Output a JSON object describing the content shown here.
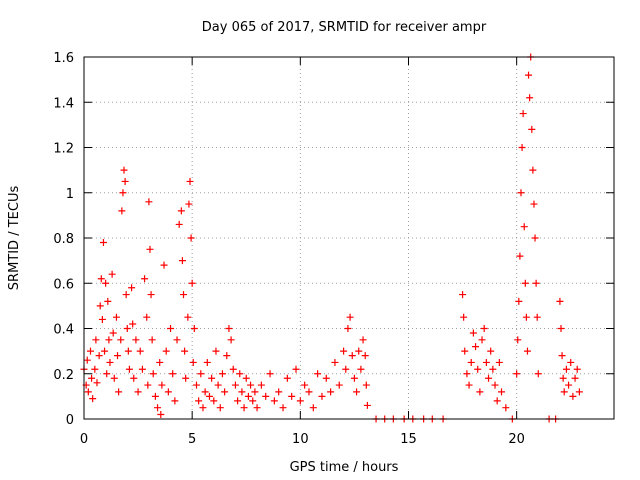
{
  "chart_data": {
    "type": "scatter",
    "title": "Day 065 of 2017, SRMTID for receiver ampr",
    "xlabel": "GPS time / hours",
    "ylabel": "SRMTID / TECUs",
    "xlim": [
      0,
      24.5
    ],
    "ylim": [
      0,
      1.6
    ],
    "xticks": [
      0,
      5,
      10,
      15,
      20
    ],
    "xtick_labels": [
      "0",
      "5",
      "10",
      "15",
      "20"
    ],
    "yticks": [
      0,
      0.2,
      0.4,
      0.6,
      0.8,
      1.0,
      1.2,
      1.4,
      1.6
    ],
    "ytick_labels": [
      "0",
      "0.2",
      "0.4",
      "0.6",
      "0.8",
      "1",
      "1.2",
      "1.4",
      "1.6"
    ],
    "grid": true,
    "marker": "+",
    "colors": {
      "series": "#ff0000",
      "axis": "#000000",
      "grid": "#a0a0a0"
    },
    "series": [
      {
        "name": "SRMTID",
        "points": [
          [
            0.0,
            0.22
          ],
          [
            0.1,
            0.15
          ],
          [
            0.15,
            0.26
          ],
          [
            0.2,
            0.12
          ],
          [
            0.3,
            0.3
          ],
          [
            0.35,
            0.18
          ],
          [
            0.4,
            0.09
          ],
          [
            0.5,
            0.22
          ],
          [
            0.55,
            0.35
          ],
          [
            0.6,
            0.16
          ],
          [
            0.7,
            0.28
          ],
          [
            0.75,
            0.5
          ],
          [
            0.8,
            0.62
          ],
          [
            0.85,
            0.44
          ],
          [
            0.9,
            0.78
          ],
          [
            0.95,
            0.3
          ],
          [
            1.0,
            0.6
          ],
          [
            1.05,
            0.2
          ],
          [
            1.1,
            0.52
          ],
          [
            1.15,
            0.35
          ],
          [
            1.2,
            0.25
          ],
          [
            1.3,
            0.64
          ],
          [
            1.35,
            0.38
          ],
          [
            1.4,
            0.18
          ],
          [
            1.5,
            0.45
          ],
          [
            1.55,
            0.28
          ],
          [
            1.6,
            0.12
          ],
          [
            1.7,
            0.35
          ],
          [
            1.75,
            0.92
          ],
          [
            1.8,
            1.0
          ],
          [
            1.85,
            1.1
          ],
          [
            1.9,
            1.05
          ],
          [
            1.95,
            0.55
          ],
          [
            2.0,
            0.4
          ],
          [
            2.05,
            0.3
          ],
          [
            2.1,
            0.22
          ],
          [
            2.2,
            0.58
          ],
          [
            2.25,
            0.42
          ],
          [
            2.3,
            0.18
          ],
          [
            2.4,
            0.35
          ],
          [
            2.5,
            0.12
          ],
          [
            2.6,
            0.3
          ],
          [
            2.7,
            0.22
          ],
          [
            2.8,
            0.62
          ],
          [
            2.9,
            0.45
          ],
          [
            2.95,
            0.15
          ],
          [
            3.0,
            0.96
          ],
          [
            3.05,
            0.75
          ],
          [
            3.1,
            0.55
          ],
          [
            3.15,
            0.35
          ],
          [
            3.2,
            0.2
          ],
          [
            3.3,
            0.1
          ],
          [
            3.4,
            0.05
          ],
          [
            3.5,
            0.25
          ],
          [
            3.55,
            0.02
          ],
          [
            3.6,
            0.15
          ],
          [
            3.7,
            0.68
          ],
          [
            3.8,
            0.3
          ],
          [
            3.9,
            0.12
          ],
          [
            4.0,
            0.4
          ],
          [
            4.1,
            0.2
          ],
          [
            4.2,
            0.08
          ],
          [
            4.3,
            0.35
          ],
          [
            4.4,
            0.86
          ],
          [
            4.5,
            0.92
          ],
          [
            4.55,
            0.7
          ],
          [
            4.6,
            0.55
          ],
          [
            4.65,
            0.3
          ],
          [
            4.7,
            0.18
          ],
          [
            4.8,
            0.45
          ],
          [
            4.85,
            0.95
          ],
          [
            4.9,
            1.05
          ],
          [
            4.95,
            0.8
          ],
          [
            5.0,
            0.6
          ],
          [
            5.05,
            0.25
          ],
          [
            5.1,
            0.4
          ],
          [
            5.2,
            0.15
          ],
          [
            5.3,
            0.08
          ],
          [
            5.4,
            0.2
          ],
          [
            5.5,
            0.05
          ],
          [
            5.6,
            0.12
          ],
          [
            5.7,
            0.25
          ],
          [
            5.8,
            0.1
          ],
          [
            5.9,
            0.18
          ],
          [
            6.0,
            0.08
          ],
          [
            6.1,
            0.3
          ],
          [
            6.2,
            0.15
          ],
          [
            6.3,
            0.05
          ],
          [
            6.4,
            0.2
          ],
          [
            6.5,
            0.12
          ],
          [
            6.6,
            0.28
          ],
          [
            6.7,
            0.4
          ],
          [
            6.8,
            0.35
          ],
          [
            6.9,
            0.22
          ],
          [
            7.0,
            0.15
          ],
          [
            7.1,
            0.08
          ],
          [
            7.2,
            0.2
          ],
          [
            7.3,
            0.12
          ],
          [
            7.4,
            0.05
          ],
          [
            7.5,
            0.18
          ],
          [
            7.6,
            0.1
          ],
          [
            7.7,
            0.15
          ],
          [
            7.8,
            0.08
          ],
          [
            7.9,
            0.12
          ],
          [
            8.0,
            0.05
          ],
          [
            8.2,
            0.15
          ],
          [
            8.4,
            0.1
          ],
          [
            8.6,
            0.2
          ],
          [
            8.8,
            0.08
          ],
          [
            9.0,
            0.12
          ],
          [
            9.2,
            0.05
          ],
          [
            9.4,
            0.18
          ],
          [
            9.6,
            0.1
          ],
          [
            9.8,
            0.22
          ],
          [
            10.0,
            0.08
          ],
          [
            10.2,
            0.15
          ],
          [
            10.4,
            0.12
          ],
          [
            10.6,
            0.05
          ],
          [
            10.8,
            0.2
          ],
          [
            11.0,
            0.1
          ],
          [
            11.2,
            0.18
          ],
          [
            11.4,
            0.12
          ],
          [
            11.6,
            0.25
          ],
          [
            11.8,
            0.15
          ],
          [
            12.0,
            0.3
          ],
          [
            12.1,
            0.22
          ],
          [
            12.2,
            0.4
          ],
          [
            12.3,
            0.45
          ],
          [
            12.4,
            0.28
          ],
          [
            12.5,
            0.18
          ],
          [
            12.6,
            0.12
          ],
          [
            12.7,
            0.3
          ],
          [
            12.8,
            0.22
          ],
          [
            12.9,
            0.35
          ],
          [
            13.0,
            0.28
          ],
          [
            13.05,
            0.15
          ],
          [
            13.1,
            0.06
          ],
          [
            13.5,
            0.0
          ],
          [
            13.9,
            0.0
          ],
          [
            14.3,
            0.0
          ],
          [
            14.8,
            0.0
          ],
          [
            15.2,
            0.0
          ],
          [
            15.7,
            0.0
          ],
          [
            16.1,
            0.0
          ],
          [
            16.6,
            0.0
          ],
          [
            17.5,
            0.55
          ],
          [
            17.55,
            0.45
          ],
          [
            17.6,
            0.3
          ],
          [
            17.7,
            0.2
          ],
          [
            17.8,
            0.15
          ],
          [
            17.9,
            0.25
          ],
          [
            18.0,
            0.38
          ],
          [
            18.1,
            0.32
          ],
          [
            18.2,
            0.22
          ],
          [
            18.3,
            0.12
          ],
          [
            18.4,
            0.35
          ],
          [
            18.5,
            0.4
          ],
          [
            18.6,
            0.25
          ],
          [
            18.7,
            0.18
          ],
          [
            18.8,
            0.3
          ],
          [
            18.9,
            0.22
          ],
          [
            19.0,
            0.15
          ],
          [
            19.1,
            0.08
          ],
          [
            19.2,
            0.25
          ],
          [
            19.3,
            0.12
          ],
          [
            19.5,
            0.05
          ],
          [
            19.8,
            0.0
          ],
          [
            20.0,
            0.2
          ],
          [
            20.05,
            0.35
          ],
          [
            20.1,
            0.52
          ],
          [
            20.15,
            0.72
          ],
          [
            20.2,
            1.0
          ],
          [
            20.25,
            1.2
          ],
          [
            20.3,
            1.35
          ],
          [
            20.35,
            0.85
          ],
          [
            20.4,
            0.6
          ],
          [
            20.45,
            0.45
          ],
          [
            20.5,
            0.3
          ],
          [
            20.55,
            1.52
          ],
          [
            20.6,
            1.42
          ],
          [
            20.65,
            1.6
          ],
          [
            20.7,
            1.28
          ],
          [
            20.75,
            1.1
          ],
          [
            20.8,
            0.95
          ],
          [
            20.85,
            0.8
          ],
          [
            20.9,
            0.6
          ],
          [
            20.95,
            0.45
          ],
          [
            21.0,
            0.2
          ],
          [
            21.5,
            0.0
          ],
          [
            21.8,
            0.0
          ],
          [
            22.0,
            0.52
          ],
          [
            22.05,
            0.4
          ],
          [
            22.1,
            0.28
          ],
          [
            22.15,
            0.18
          ],
          [
            22.2,
            0.12
          ],
          [
            22.3,
            0.22
          ],
          [
            22.4,
            0.15
          ],
          [
            22.5,
            0.25
          ],
          [
            22.6,
            0.1
          ],
          [
            22.7,
            0.18
          ],
          [
            22.8,
            0.22
          ],
          [
            22.9,
            0.12
          ]
        ]
      }
    ]
  }
}
